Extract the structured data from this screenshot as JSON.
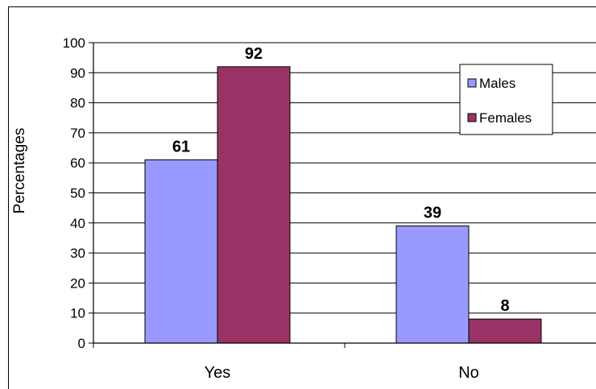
{
  "chart_data": {
    "type": "bar",
    "categories": [
      "Yes",
      "No"
    ],
    "series": [
      {
        "name": "Males",
        "values": [
          61,
          39
        ],
        "color": "#9999ff"
      },
      {
        "name": "Females",
        "values": [
          92,
          8
        ],
        "color": "#993366"
      }
    ],
    "data_labels": [
      [
        "61",
        "39"
      ],
      [
        "92",
        "8"
      ]
    ],
    "ylabel": "Percentages",
    "xlabel": "",
    "ylim": [
      0,
      100
    ],
    "yticks": [
      0,
      10,
      20,
      30,
      40,
      50,
      60,
      70,
      80,
      90,
      100
    ],
    "ytick_labels": [
      "0",
      "10",
      "20",
      "30",
      "40",
      "50",
      "60",
      "70",
      "80",
      "90",
      "100"
    ],
    "grid": true,
    "legend_position": "top-right"
  }
}
